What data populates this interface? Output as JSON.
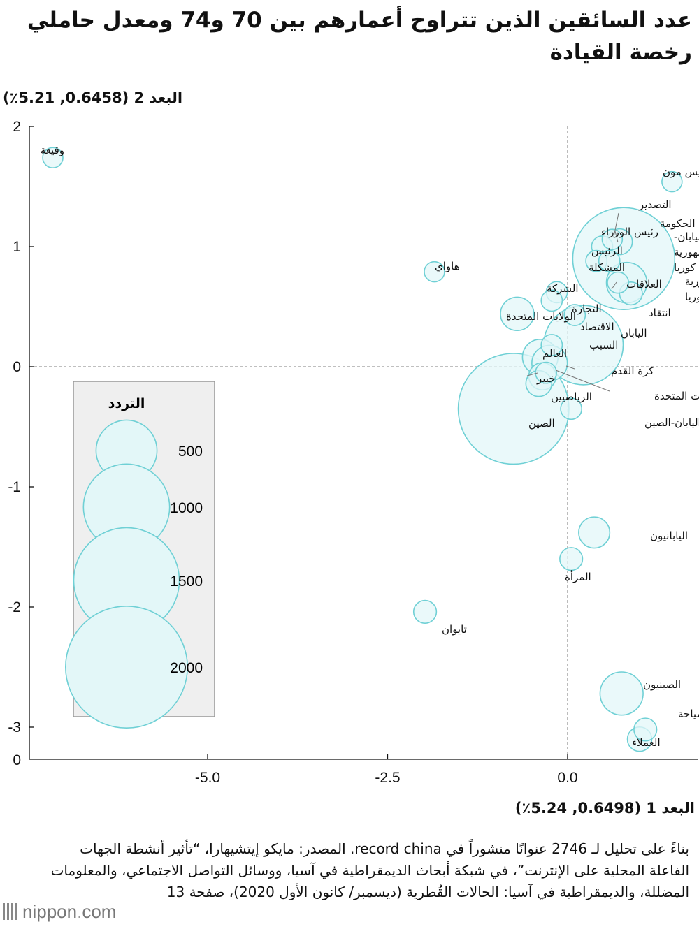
{
  "title": "عدد السائقين الذين تتراوح أعمارهم بين 70 و74 ومعدل حاملي رخصة القيادة",
  "note": "بناءً على تحليل لـ 2746 عنوانًا منشوراً في record china. المصدر: مايكو إيتشيهارا، “تأثير أنشطة الجهات الفاعلة المحلية على الإنترنت”، في شبكة أبحاث الديمقراطية في آسيا، ووسائل التواصل الاجتماعي، والمعلومات المضللة، والديمقراطية في آسيا: الحالات القُطرية (ديسمبر/ كانون الأول 2020)، صفحة 13",
  "brand": {
    "name": "nippon",
    "dot": ".",
    "tld": "com"
  },
  "colors": {
    "bubble_fill": "#e3f7f8",
    "bubble_stroke": "#6fd0d5",
    "legend_bg": "#efefef",
    "legend_border": "#999999"
  },
  "chart_data": {
    "type": "scatter",
    "xlabel": "البعد 1 (0.6498, 5.24٪)",
    "ylabel": "البعد 2 (0.6458, 5.21٪)",
    "xlim": [
      -7.0,
      1.6
    ],
    "ylim": [
      -3.3,
      2.0
    ],
    "x_ticks": [
      -5.0,
      -2.5,
      0.0
    ],
    "x_tick_labels": [
      "-5.0",
      "-2.5",
      "0.0"
    ],
    "y_ticks": [
      2,
      1,
      0,
      -1,
      -2,
      -3
    ],
    "y_tick_labels": [
      "2",
      "1",
      "0",
      "-1",
      "-2",
      "-3"
    ],
    "y_extra_tick_label": "0",
    "reference_lines": {
      "x": 0,
      "y": 0
    },
    "legend": {
      "title": "التردد",
      "sizes": [
        500,
        1000,
        1500,
        2000
      ],
      "labels": [
        "500",
        "1000",
        "1500",
        "2000"
      ]
    },
    "points": [
      {
        "label": "وقيعة",
        "x": -7.15,
        "y": 1.74,
        "size": 55
      },
      {
        "label": "الرئيس مون",
        "x": 1.45,
        "y": 1.54,
        "size": 55
      },
      {
        "label": "هاواي",
        "x": -1.85,
        "y": 0.79,
        "size": 55
      },
      {
        "label": "التصدير",
        "x": 0.62,
        "y": 1.06,
        "size": 55
      },
      {
        "label": "الحكومة",
        "x": 0.72,
        "y": 1.04,
        "size": 90
      },
      {
        "label": "اليابان-جمهورية كوريا",
        "x": 0.78,
        "y": 0.9,
        "size": 1400
      },
      {
        "label": "رئيس الوزراء",
        "x": 0.48,
        "y": 1.0,
        "size": 60
      },
      {
        "label": "الرئيس",
        "x": 0.4,
        "y": 0.88,
        "size": 60
      },
      {
        "label": "المشكلة",
        "x": 0.58,
        "y": 0.88,
        "size": 60
      },
      {
        "label": "العلاقات",
        "x": 0.7,
        "y": 0.7,
        "size": 60
      },
      {
        "label": "جمهورية كوريا",
        "x": 0.82,
        "y": 0.7,
        "size": 220
      },
      {
        "label": "انتقاد",
        "x": 0.88,
        "y": 0.61,
        "size": 70
      },
      {
        "label": "الشركة",
        "x": -0.15,
        "y": 0.62,
        "size": 60
      },
      {
        "label": "التجارة",
        "x": -0.22,
        "y": 0.55,
        "size": 60
      },
      {
        "label": "الولايات المتحدة",
        "x": -0.7,
        "y": 0.44,
        "size": 150
      },
      {
        "label": "الاقتصاد",
        "x": 0.1,
        "y": 0.43,
        "size": 60
      },
      {
        "label": "اليابان",
        "x": 0.22,
        "y": 0.18,
        "size": 850
      },
      {
        "label": "السبب",
        "x": -0.22,
        "y": 0.18,
        "size": 60
      },
      {
        "label": "العالم",
        "x": -0.38,
        "y": 0.08,
        "size": 170
      },
      {
        "label": "كرة القدم",
        "x": -0.25,
        "y": 0.03,
        "size": 170
      },
      {
        "label": "خبير",
        "x": -0.35,
        "y": -0.08,
        "size": 100
      },
      {
        "label": "الرياضيين",
        "x": -0.4,
        "y": -0.14,
        "size": 90
      },
      {
        "label": "الولايات المتحدة",
        "x": -0.3,
        "y": -0.05,
        "size": 60
      },
      {
        "label": "الصين",
        "x": -0.75,
        "y": -0.35,
        "size": 1650
      },
      {
        "label": "اليابان-الصين",
        "x": 0.05,
        "y": -0.35,
        "size": 60
      },
      {
        "label": "اليابانيون",
        "x": 0.37,
        "y": -1.38,
        "size": 130
      },
      {
        "label": "المرأة",
        "x": 0.05,
        "y": -1.6,
        "size": 70
      },
      {
        "label": "تايوان",
        "x": -1.98,
        "y": -2.04,
        "size": 70
      },
      {
        "label": "الصينيون",
        "x": 0.75,
        "y": -2.72,
        "size": 250
      },
      {
        "label": "السياحة",
        "x": 1.08,
        "y": -3.02,
        "size": 70
      },
      {
        "label": "العملاء",
        "x": 1.0,
        "y": -3.1,
        "size": 80
      }
    ]
  }
}
